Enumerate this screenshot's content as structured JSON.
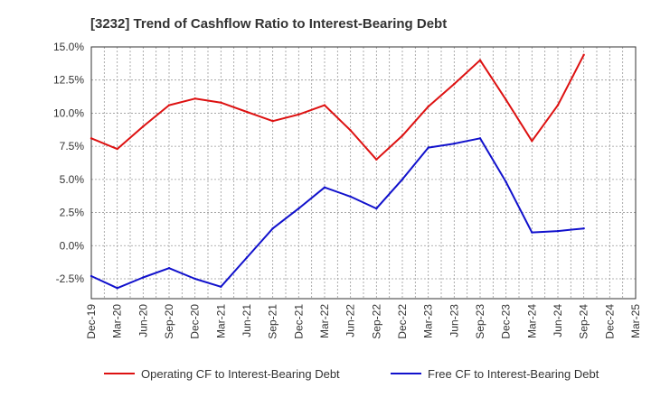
{
  "chart_data": {
    "type": "line",
    "title": "[3232]  Trend of Cashflow Ratio to Interest-Bearing Debt",
    "xlabel": "",
    "ylabel": "",
    "categories": [
      "Dec-19",
      "Mar-20",
      "Jun-20",
      "Sep-20",
      "Dec-20",
      "Mar-21",
      "Jun-21",
      "Sep-21",
      "Dec-21",
      "Mar-22",
      "Jun-22",
      "Sep-22",
      "Dec-22",
      "Mar-23",
      "Jun-23",
      "Sep-23",
      "Dec-23",
      "Mar-24",
      "Jun-24",
      "Sep-24",
      "Dec-24",
      "Mar-25"
    ],
    "ylim": [
      -4.0,
      15.0
    ],
    "y_ticks": [
      15.0,
      12.5,
      10.0,
      7.5,
      5.0,
      2.5,
      0.0,
      -2.5
    ],
    "y_tick_labels": [
      "15.0%",
      "12.5%",
      "10.0%",
      "7.5%",
      "5.0%",
      "2.5%",
      "0.0%",
      "-2.5%"
    ],
    "grid": true,
    "legend_position": "bottom",
    "series": [
      {
        "name": "Operating CF to Interest-Bearing Debt",
        "color": "#dd1111",
        "values": [
          8.1,
          7.3,
          9.0,
          10.6,
          11.1,
          10.8,
          10.1,
          9.4,
          9.9,
          10.6,
          8.7,
          6.5,
          8.3,
          10.5,
          12.2,
          14.0,
          11.0,
          7.9,
          10.6,
          14.4,
          null,
          null
        ]
      },
      {
        "name": "Free CF to Interest-Bearing Debt",
        "color": "#1111cc",
        "values": [
          -2.3,
          -3.2,
          -2.4,
          -1.7,
          -2.5,
          -3.1,
          -0.9,
          1.3,
          2.8,
          4.4,
          3.7,
          2.8,
          5.0,
          7.4,
          7.7,
          8.1,
          4.8,
          1.0,
          1.1,
          1.3,
          null,
          null
        ]
      }
    ]
  }
}
